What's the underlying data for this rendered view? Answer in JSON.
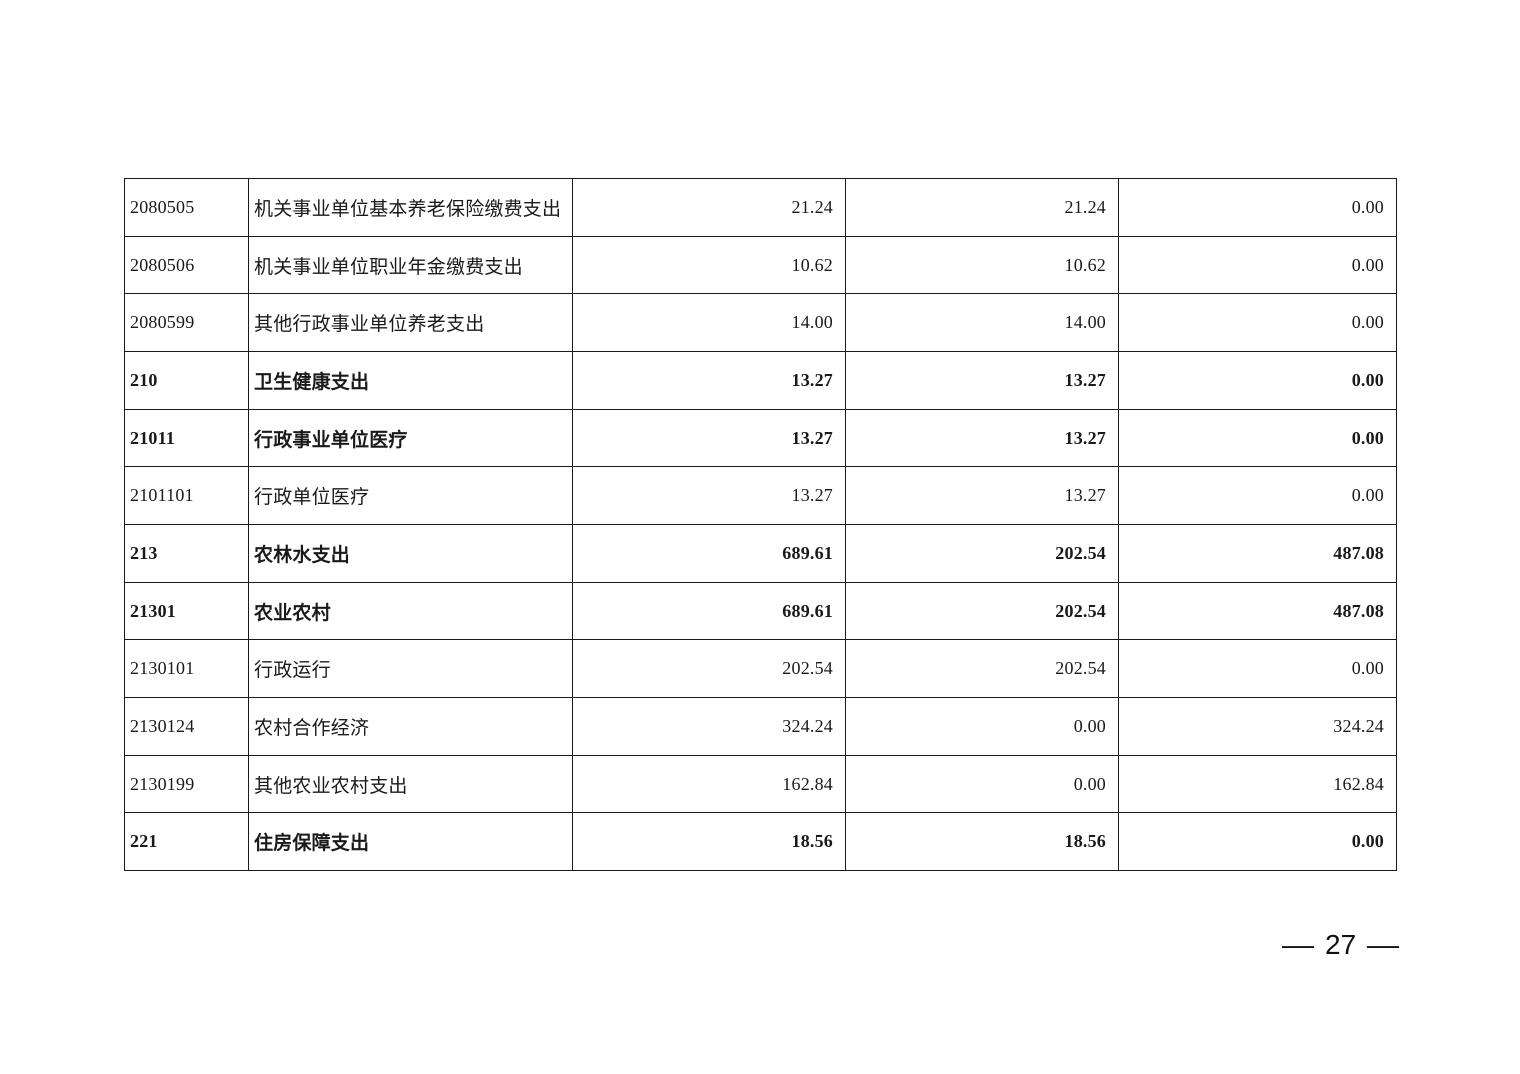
{
  "table": {
    "rows": [
      {
        "code": "2080505",
        "name": "机关事业单位基本养老保险缴费支出",
        "values": [
          "21.24",
          "21.24",
          "0.00"
        ],
        "bold": false
      },
      {
        "code": "2080506",
        "name": "机关事业单位职业年金缴费支出",
        "values": [
          "10.62",
          "10.62",
          "0.00"
        ],
        "bold": false
      },
      {
        "code": "2080599",
        "name": "其他行政事业单位养老支出",
        "values": [
          "14.00",
          "14.00",
          "0.00"
        ],
        "bold": false
      },
      {
        "code": "210",
        "name": "卫生健康支出",
        "values": [
          "13.27",
          "13.27",
          "0.00"
        ],
        "bold": true
      },
      {
        "code": "21011",
        "name": "行政事业单位医疗",
        "values": [
          "13.27",
          "13.27",
          "0.00"
        ],
        "bold": true
      },
      {
        "code": "2101101",
        "name": "行政单位医疗",
        "values": [
          "13.27",
          "13.27",
          "0.00"
        ],
        "bold": false
      },
      {
        "code": "213",
        "name": "农林水支出",
        "values": [
          "689.61",
          "202.54",
          "487.08"
        ],
        "bold": true
      },
      {
        "code": "21301",
        "name": "农业农村",
        "values": [
          "689.61",
          "202.54",
          "487.08"
        ],
        "bold": true
      },
      {
        "code": "2130101",
        "name": "行政运行",
        "values": [
          "202.54",
          "202.54",
          "0.00"
        ],
        "bold": false
      },
      {
        "code": "2130124",
        "name": "农村合作经济",
        "values": [
          "324.24",
          "0.00",
          "324.24"
        ],
        "bold": false
      },
      {
        "code": "2130199",
        "name": "其他农业农村支出",
        "values": [
          "162.84",
          "0.00",
          "162.84"
        ],
        "bold": false
      },
      {
        "code": "221",
        "name": "住房保障支出",
        "values": [
          "18.56",
          "18.56",
          "0.00"
        ],
        "bold": true
      }
    ]
  },
  "footer": {
    "dash": "—",
    "page_number": "27"
  }
}
